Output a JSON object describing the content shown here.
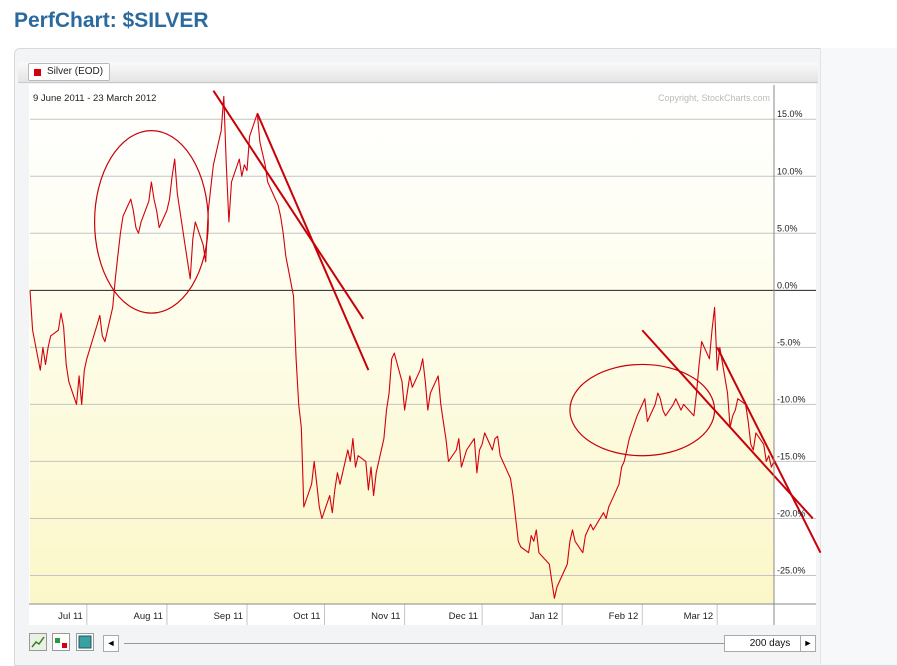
{
  "page": {
    "title": "PerfChart: $SILVER"
  },
  "legend": {
    "symbol_label": "Silver (EOD)",
    "color": "#d4000b"
  },
  "chart_data": {
    "type": "line",
    "date_range": "9 June 2011 - 23 March 2012",
    "copyright": "Copyright, StockCharts.com",
    "ylim": [
      -27.5,
      18.0
    ],
    "ytick_labels": [
      "15.0%",
      "10.0%",
      "5.0%",
      "0.0%",
      "-5.0%",
      "-10.0%",
      "-15.0%",
      "-20.0%",
      "-25.0%"
    ],
    "ytick_values": [
      15,
      10,
      5,
      0,
      -5,
      -10,
      -15,
      -20,
      -25
    ],
    "x_range": [
      "2011-06-09",
      "2012-03-23"
    ],
    "xtick_labels": [
      "Jul 11",
      "Aug 11",
      "Sep 11",
      "Oct 11",
      "Nov 11",
      "Dec 11",
      "Jan 12",
      "Feb 12",
      "Mar 12"
    ],
    "xtick_dates": [
      "2011-07-01",
      "2011-08-01",
      "2011-09-01",
      "2011-10-01",
      "2011-11-01",
      "2011-12-01",
      "2012-01-01",
      "2012-02-01",
      "2012-03-01"
    ],
    "grid": true,
    "series": [
      {
        "name": "Silver (EOD)",
        "color": "#d4000b",
        "points": [
          [
            "2011-06-09",
            0.0
          ],
          [
            "2011-06-10",
            -3.5
          ],
          [
            "2011-06-13",
            -7.0
          ],
          [
            "2011-06-14",
            -5.0
          ],
          [
            "2011-06-15",
            -6.5
          ],
          [
            "2011-06-16",
            -5.0
          ],
          [
            "2011-06-17",
            -4.0
          ],
          [
            "2011-06-20",
            -3.5
          ],
          [
            "2011-06-21",
            -2.0
          ],
          [
            "2011-06-22",
            -3.2
          ],
          [
            "2011-06-23",
            -6.5
          ],
          [
            "2011-06-24",
            -8.0
          ],
          [
            "2011-06-27",
            -10.0
          ],
          [
            "2011-06-28",
            -7.5
          ],
          [
            "2011-06-29",
            -10.0
          ],
          [
            "2011-06-30",
            -7.0
          ],
          [
            "2011-07-01",
            -6.0
          ],
          [
            "2011-07-05",
            -3.0
          ],
          [
            "2011-07-06",
            -2.2
          ],
          [
            "2011-07-07",
            -4.0
          ],
          [
            "2011-07-08",
            -4.5
          ],
          [
            "2011-07-11",
            -1.5
          ],
          [
            "2011-07-12",
            1.0
          ],
          [
            "2011-07-13",
            3.0
          ],
          [
            "2011-07-14",
            5.0
          ],
          [
            "2011-07-15",
            6.5
          ],
          [
            "2011-07-18",
            8.0
          ],
          [
            "2011-07-19",
            7.0
          ],
          [
            "2011-07-20",
            5.5
          ],
          [
            "2011-07-21",
            5.0
          ],
          [
            "2011-07-22",
            6.0
          ],
          [
            "2011-07-25",
            7.8
          ],
          [
            "2011-07-26",
            9.5
          ],
          [
            "2011-07-27",
            8.0
          ],
          [
            "2011-07-28",
            7.0
          ],
          [
            "2011-07-29",
            5.5
          ],
          [
            "2011-08-01",
            7.0
          ],
          [
            "2011-08-02",
            8.0
          ],
          [
            "2011-08-03",
            10.0
          ],
          [
            "2011-08-04",
            11.5
          ],
          [
            "2011-08-05",
            8.5
          ],
          [
            "2011-08-08",
            4.0
          ],
          [
            "2011-08-09",
            2.5
          ],
          [
            "2011-08-10",
            1.0
          ],
          [
            "2011-08-11",
            4.5
          ],
          [
            "2011-08-12",
            6.0
          ],
          [
            "2011-08-15",
            4.0
          ],
          [
            "2011-08-16",
            2.5
          ],
          [
            "2011-08-17",
            7.0
          ],
          [
            "2011-08-18",
            9.0
          ],
          [
            "2011-08-19",
            11.0
          ],
          [
            "2011-08-22",
            14.0
          ],
          [
            "2011-08-23",
            17.0
          ],
          [
            "2011-08-24",
            11.0
          ],
          [
            "2011-08-25",
            6.0
          ],
          [
            "2011-08-26",
            9.5
          ],
          [
            "2011-08-29",
            11.5
          ],
          [
            "2011-08-30",
            10.0
          ],
          [
            "2011-08-31",
            11.0
          ],
          [
            "2011-09-01",
            10.5
          ],
          [
            "2011-09-02",
            13.5
          ],
          [
            "2011-09-05",
            15.5
          ],
          [
            "2011-09-06",
            13.0
          ],
          [
            "2011-09-07",
            12.0
          ],
          [
            "2011-09-08",
            11.0
          ],
          [
            "2011-09-09",
            9.5
          ],
          [
            "2011-09-12",
            8.0
          ],
          [
            "2011-09-13",
            7.5
          ],
          [
            "2011-09-14",
            6.5
          ],
          [
            "2011-09-15",
            5.0
          ],
          [
            "2011-09-16",
            3.0
          ],
          [
            "2011-09-19",
            -0.5
          ],
          [
            "2011-09-20",
            -6.0
          ],
          [
            "2011-09-21",
            -10.0
          ],
          [
            "2011-09-22",
            -12.0
          ],
          [
            "2011-09-23",
            -19.0
          ],
          [
            "2011-09-26",
            -17.0
          ],
          [
            "2011-09-27",
            -15.0
          ],
          [
            "2011-09-28",
            -17.0
          ],
          [
            "2011-09-29",
            -19.0
          ],
          [
            "2011-09-30",
            -20.0
          ],
          [
            "2011-10-03",
            -18.0
          ],
          [
            "2011-10-04",
            -19.5
          ],
          [
            "2011-10-05",
            -17.5
          ],
          [
            "2011-10-06",
            -16.0
          ],
          [
            "2011-10-07",
            -17.0
          ],
          [
            "2011-10-10",
            -14.0
          ],
          [
            "2011-10-11",
            -15.0
          ],
          [
            "2011-10-12",
            -13.0
          ],
          [
            "2011-10-13",
            -15.5
          ],
          [
            "2011-10-14",
            -14.5
          ],
          [
            "2011-10-17",
            -15.0
          ],
          [
            "2011-10-18",
            -17.5
          ],
          [
            "2011-10-19",
            -15.5
          ],
          [
            "2011-10-20",
            -18.0
          ],
          [
            "2011-10-21",
            -16.0
          ],
          [
            "2011-10-24",
            -13.0
          ],
          [
            "2011-10-25",
            -10.5
          ],
          [
            "2011-10-26",
            -9.0
          ],
          [
            "2011-10-27",
            -6.0
          ],
          [
            "2011-10-28",
            -5.5
          ],
          [
            "2011-10-31",
            -8.0
          ],
          [
            "2011-11-01",
            -10.5
          ],
          [
            "2011-11-02",
            -9.0
          ],
          [
            "2011-11-03",
            -7.5
          ],
          [
            "2011-11-04",
            -8.5
          ],
          [
            "2011-11-07",
            -7.0
          ],
          [
            "2011-11-08",
            -6.0
          ],
          [
            "2011-11-09",
            -8.0
          ],
          [
            "2011-11-10",
            -10.5
          ],
          [
            "2011-11-11",
            -9.0
          ],
          [
            "2011-11-14",
            -7.5
          ],
          [
            "2011-11-15",
            -10.0
          ],
          [
            "2011-11-16",
            -11.5
          ],
          [
            "2011-11-17",
            -13.0
          ],
          [
            "2011-11-18",
            -15.0
          ],
          [
            "2011-11-21",
            -14.0
          ],
          [
            "2011-11-22",
            -13.0
          ],
          [
            "2011-11-23",
            -15.5
          ],
          [
            "2011-11-25",
            -14.0
          ],
          [
            "2011-11-28",
            -13.0
          ],
          [
            "2011-11-29",
            -16.0
          ],
          [
            "2011-11-30",
            -14.0
          ],
          [
            "2011-12-01",
            -13.5
          ],
          [
            "2011-12-02",
            -12.5
          ],
          [
            "2011-12-05",
            -14.0
          ],
          [
            "2011-12-06",
            -13.0
          ],
          [
            "2011-12-07",
            -12.8
          ],
          [
            "2011-12-08",
            -14.5
          ],
          [
            "2011-12-09",
            -15.0
          ],
          [
            "2011-12-12",
            -16.5
          ],
          [
            "2011-12-13",
            -18.0
          ],
          [
            "2011-12-14",
            -20.0
          ],
          [
            "2011-12-15",
            -22.0
          ],
          [
            "2011-12-16",
            -22.5
          ],
          [
            "2011-12-19",
            -23.0
          ],
          [
            "2011-12-20",
            -21.5
          ],
          [
            "2011-12-21",
            -22.0
          ],
          [
            "2011-12-22",
            -21.0
          ],
          [
            "2011-12-23",
            -23.0
          ],
          [
            "2011-12-27",
            -24.0
          ],
          [
            "2011-12-28",
            -25.5
          ],
          [
            "2011-12-29",
            -27.0
          ],
          [
            "2011-12-30",
            -26.0
          ],
          [
            "2012-01-03",
            -24.0
          ],
          [
            "2012-01-04",
            -22.0
          ],
          [
            "2012-01-05",
            -21.0
          ],
          [
            "2012-01-06",
            -22.0
          ],
          [
            "2012-01-09",
            -23.0
          ],
          [
            "2012-01-10",
            -21.5
          ],
          [
            "2012-01-11",
            -21.0
          ],
          [
            "2012-01-12",
            -20.5
          ],
          [
            "2012-01-13",
            -21.0
          ],
          [
            "2012-01-17",
            -19.5
          ],
          [
            "2012-01-18",
            -20.0
          ],
          [
            "2012-01-19",
            -19.0
          ],
          [
            "2012-01-20",
            -18.5
          ],
          [
            "2012-01-23",
            -17.0
          ],
          [
            "2012-01-24",
            -15.5
          ],
          [
            "2012-01-25",
            -15.0
          ],
          [
            "2012-01-26",
            -14.0
          ],
          [
            "2012-01-27",
            -13.0
          ],
          [
            "2012-01-30",
            -11.0
          ],
          [
            "2012-01-31",
            -10.5
          ],
          [
            "2012-02-01",
            -10.0
          ],
          [
            "2012-02-02",
            -9.5
          ],
          [
            "2012-02-03",
            -11.5
          ],
          [
            "2012-02-06",
            -10.0
          ],
          [
            "2012-02-07",
            -9.0
          ],
          [
            "2012-02-08",
            -9.5
          ],
          [
            "2012-02-09",
            -10.5
          ],
          [
            "2012-02-10",
            -11.0
          ],
          [
            "2012-02-13",
            -10.0
          ],
          [
            "2012-02-14",
            -9.5
          ],
          [
            "2012-02-15",
            -10.0
          ],
          [
            "2012-02-16",
            -10.5
          ],
          [
            "2012-02-17",
            -10.0
          ],
          [
            "2012-02-21",
            -11.0
          ],
          [
            "2012-02-22",
            -9.0
          ],
          [
            "2012-02-23",
            -6.5
          ],
          [
            "2012-02-24",
            -4.5
          ],
          [
            "2012-02-27",
            -6.0
          ],
          [
            "2012-02-28",
            -3.5
          ],
          [
            "2012-02-29",
            -1.5
          ],
          [
            "2012-03-01",
            -7.0
          ],
          [
            "2012-03-02",
            -5.0
          ],
          [
            "2012-03-05",
            -9.0
          ],
          [
            "2012-03-06",
            -12.0
          ],
          [
            "2012-03-07",
            -11.0
          ],
          [
            "2012-03-08",
            -10.5
          ],
          [
            "2012-03-09",
            -9.5
          ],
          [
            "2012-03-12",
            -10.0
          ],
          [
            "2012-03-13",
            -11.5
          ],
          [
            "2012-03-14",
            -13.5
          ],
          [
            "2012-03-15",
            -14.0
          ],
          [
            "2012-03-16",
            -12.5
          ],
          [
            "2012-03-19",
            -13.5
          ],
          [
            "2012-03-20",
            -15.0
          ],
          [
            "2012-03-21",
            -14.5
          ],
          [
            "2012-03-22",
            -15.5
          ],
          [
            "2012-03-23",
            -15.0
          ]
        ]
      }
    ],
    "annotations": {
      "color": "#c8000a",
      "ellipses": [
        {
          "center": [
            "2011-07-26",
            6.0
          ],
          "radius_days": 22,
          "radius_pct": 8.0
        },
        {
          "center": [
            "2012-02-01",
            -10.5
          ],
          "radius_days": 28,
          "radius_pct": 4.0
        }
      ],
      "trendlines": [
        {
          "from": [
            "2011-08-19",
            17.5
          ],
          "to": [
            "2011-10-16",
            -2.5
          ]
        },
        {
          "from": [
            "2011-09-05",
            15.5
          ],
          "to": [
            "2011-10-18",
            -7.0
          ]
        },
        {
          "from": [
            "2012-02-01",
            -3.5
          ],
          "to": [
            "2012-04-07",
            -20.0
          ]
        },
        {
          "from": [
            "2012-03-01",
            -5.0
          ],
          "to": [
            "2012-04-10",
            -23.0
          ]
        }
      ]
    }
  },
  "toolbar": {
    "icons": [
      "line-chart-icon",
      "bar-chart-icon",
      "histogram-icon"
    ],
    "range_label": "200 days",
    "scroll_left": "◄",
    "scroll_right": "►"
  }
}
